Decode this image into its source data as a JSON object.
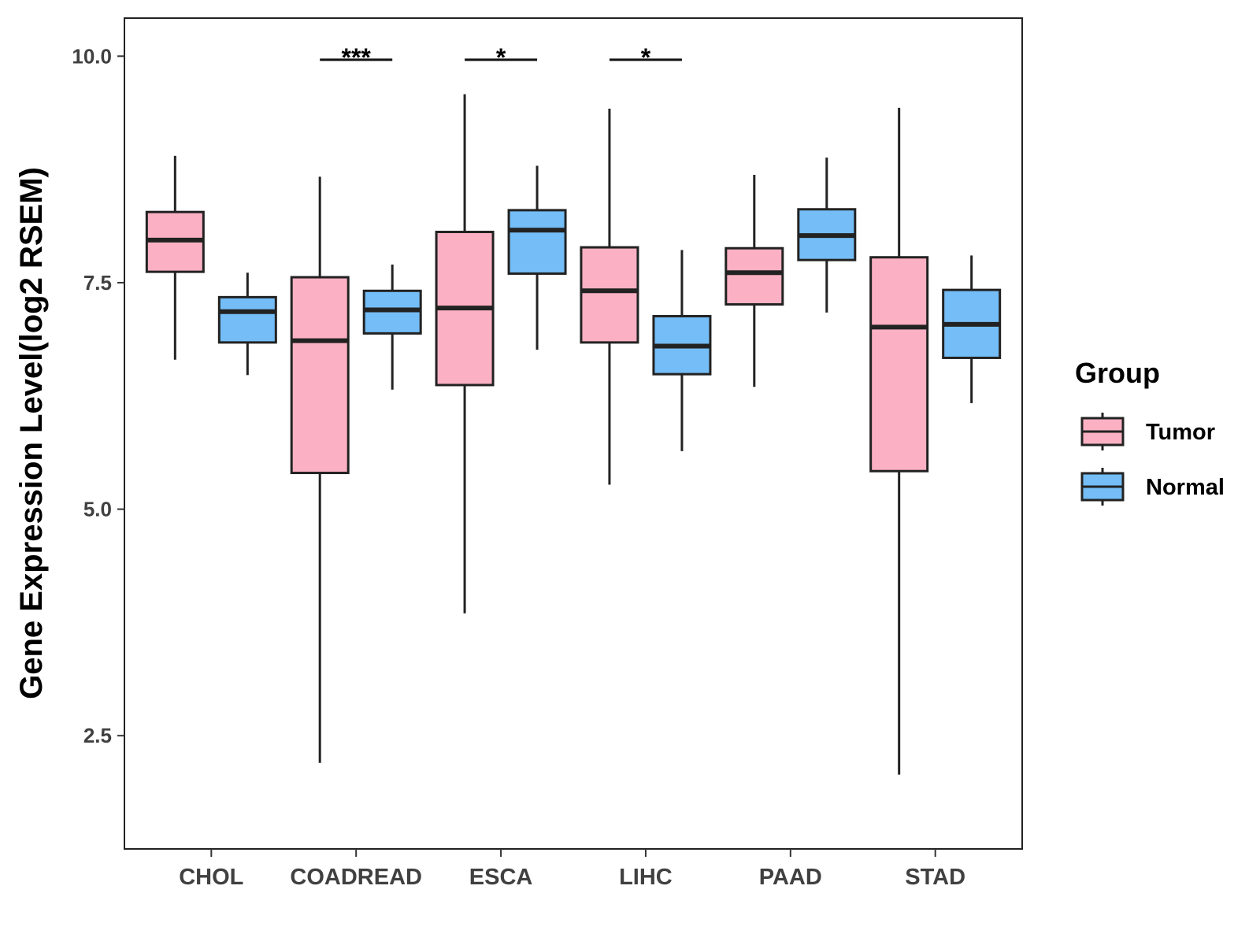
{
  "chart_data": {
    "type": "boxplot",
    "title": "",
    "xlabel": "",
    "ylabel": "Gene Expression Level(log2 RSEM)",
    "ylim": [
      1.25,
      10.42
    ],
    "yticks": [
      2.5,
      5.0,
      7.5,
      10.0
    ],
    "ytick_labels": [
      "2.5",
      "5.0",
      "7.5",
      "10.0"
    ],
    "categories": [
      "CHOL",
      "COADREAD",
      "ESCA",
      "LIHC",
      "PAAD",
      "STAD"
    ],
    "legend": {
      "title": "Group",
      "position": "right",
      "entries": [
        {
          "name": "Tumor",
          "color": "#FBB1C3"
        },
        {
          "name": "Normal",
          "color": "#74BDF6"
        }
      ]
    },
    "series": [
      {
        "name": "Tumor",
        "color": "#FBB1C3",
        "boxes": [
          {
            "category": "CHOL",
            "min": 6.65,
            "q1": 7.62,
            "median": 7.97,
            "q3": 8.28,
            "max": 8.9
          },
          {
            "category": "COADREAD",
            "min": 2.2,
            "q1": 5.4,
            "median": 6.86,
            "q3": 7.56,
            "max": 8.67
          },
          {
            "category": "ESCA",
            "min": 3.85,
            "q1": 6.37,
            "median": 7.22,
            "q3": 8.06,
            "max": 9.58
          },
          {
            "category": "LIHC",
            "min": 5.27,
            "q1": 6.84,
            "median": 7.41,
            "q3": 7.89,
            "max": 9.42
          },
          {
            "category": "PAAD",
            "min": 6.35,
            "q1": 7.26,
            "median": 7.61,
            "q3": 7.88,
            "max": 8.69
          },
          {
            "category": "STAD",
            "min": 2.07,
            "q1": 5.42,
            "median": 7.01,
            "q3": 7.78,
            "max": 9.43
          }
        ]
      },
      {
        "name": "Normal",
        "color": "#74BDF6",
        "boxes": [
          {
            "category": "CHOL",
            "min": 6.48,
            "q1": 6.84,
            "median": 7.18,
            "q3": 7.34,
            "max": 7.61
          },
          {
            "category": "COADREAD",
            "min": 6.32,
            "q1": 6.94,
            "median": 7.2,
            "q3": 7.41,
            "max": 7.7
          },
          {
            "category": "ESCA",
            "min": 6.76,
            "q1": 7.6,
            "median": 8.08,
            "q3": 8.3,
            "max": 8.79
          },
          {
            "category": "LIHC",
            "min": 5.64,
            "q1": 6.49,
            "median": 6.8,
            "q3": 7.13,
            "max": 7.86
          },
          {
            "category": "PAAD",
            "min": 7.17,
            "q1": 7.75,
            "median": 8.02,
            "q3": 8.31,
            "max": 8.88
          },
          {
            "category": "STAD",
            "min": 6.17,
            "q1": 6.67,
            "median": 7.04,
            "q3": 7.42,
            "max": 7.8
          }
        ]
      }
    ],
    "annotations": [
      {
        "category": "COADREAD",
        "label": "***",
        "y": 9.96
      },
      {
        "category": "ESCA",
        "label": "*",
        "y": 9.96
      },
      {
        "category": "LIHC",
        "label": "*",
        "y": 9.96
      }
    ]
  }
}
